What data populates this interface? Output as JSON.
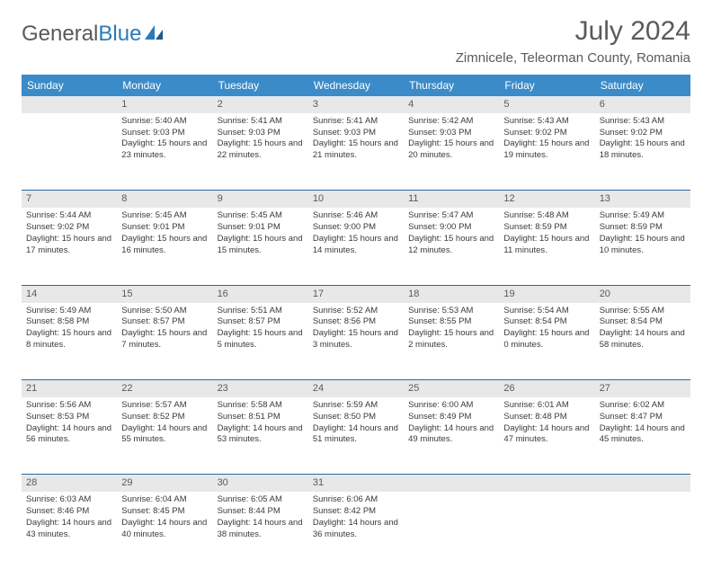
{
  "brand": {
    "part1": "General",
    "part2": "Blue"
  },
  "title": "July 2024",
  "location": "Zimnicele, Teleorman County, Romania",
  "colors": {
    "header_bg": "#3b8bc8",
    "header_text": "#ffffff",
    "daynum_bg": "#e8e8e8",
    "border": "#2a6aa0",
    "text": "#444444",
    "title_text": "#5a5a5a"
  },
  "weekdays": [
    "Sunday",
    "Monday",
    "Tuesday",
    "Wednesday",
    "Thursday",
    "Friday",
    "Saturday"
  ],
  "weeks": [
    {
      "nums": [
        "",
        "1",
        "2",
        "3",
        "4",
        "5",
        "6"
      ],
      "cells": [
        "",
        "Sunrise: 5:40 AM\nSunset: 9:03 PM\nDaylight: 15 hours and 23 minutes.",
        "Sunrise: 5:41 AM\nSunset: 9:03 PM\nDaylight: 15 hours and 22 minutes.",
        "Sunrise: 5:41 AM\nSunset: 9:03 PM\nDaylight: 15 hours and 21 minutes.",
        "Sunrise: 5:42 AM\nSunset: 9:03 PM\nDaylight: 15 hours and 20 minutes.",
        "Sunrise: 5:43 AM\nSunset: 9:02 PM\nDaylight: 15 hours and 19 minutes.",
        "Sunrise: 5:43 AM\nSunset: 9:02 PM\nDaylight: 15 hours and 18 minutes."
      ]
    },
    {
      "nums": [
        "7",
        "8",
        "9",
        "10",
        "11",
        "12",
        "13"
      ],
      "cells": [
        "Sunrise: 5:44 AM\nSunset: 9:02 PM\nDaylight: 15 hours and 17 minutes.",
        "Sunrise: 5:45 AM\nSunset: 9:01 PM\nDaylight: 15 hours and 16 minutes.",
        "Sunrise: 5:45 AM\nSunset: 9:01 PM\nDaylight: 15 hours and 15 minutes.",
        "Sunrise: 5:46 AM\nSunset: 9:00 PM\nDaylight: 15 hours and 14 minutes.",
        "Sunrise: 5:47 AM\nSunset: 9:00 PM\nDaylight: 15 hours and 12 minutes.",
        "Sunrise: 5:48 AM\nSunset: 8:59 PM\nDaylight: 15 hours and 11 minutes.",
        "Sunrise: 5:49 AM\nSunset: 8:59 PM\nDaylight: 15 hours and 10 minutes."
      ]
    },
    {
      "nums": [
        "14",
        "15",
        "16",
        "17",
        "18",
        "19",
        "20"
      ],
      "cells": [
        "Sunrise: 5:49 AM\nSunset: 8:58 PM\nDaylight: 15 hours and 8 minutes.",
        "Sunrise: 5:50 AM\nSunset: 8:57 PM\nDaylight: 15 hours and 7 minutes.",
        "Sunrise: 5:51 AM\nSunset: 8:57 PM\nDaylight: 15 hours and 5 minutes.",
        "Sunrise: 5:52 AM\nSunset: 8:56 PM\nDaylight: 15 hours and 3 minutes.",
        "Sunrise: 5:53 AM\nSunset: 8:55 PM\nDaylight: 15 hours and 2 minutes.",
        "Sunrise: 5:54 AM\nSunset: 8:54 PM\nDaylight: 15 hours and 0 minutes.",
        "Sunrise: 5:55 AM\nSunset: 8:54 PM\nDaylight: 14 hours and 58 minutes."
      ]
    },
    {
      "nums": [
        "21",
        "22",
        "23",
        "24",
        "25",
        "26",
        "27"
      ],
      "cells": [
        "Sunrise: 5:56 AM\nSunset: 8:53 PM\nDaylight: 14 hours and 56 minutes.",
        "Sunrise: 5:57 AM\nSunset: 8:52 PM\nDaylight: 14 hours and 55 minutes.",
        "Sunrise: 5:58 AM\nSunset: 8:51 PM\nDaylight: 14 hours and 53 minutes.",
        "Sunrise: 5:59 AM\nSunset: 8:50 PM\nDaylight: 14 hours and 51 minutes.",
        "Sunrise: 6:00 AM\nSunset: 8:49 PM\nDaylight: 14 hours and 49 minutes.",
        "Sunrise: 6:01 AM\nSunset: 8:48 PM\nDaylight: 14 hours and 47 minutes.",
        "Sunrise: 6:02 AM\nSunset: 8:47 PM\nDaylight: 14 hours and 45 minutes."
      ]
    },
    {
      "nums": [
        "28",
        "29",
        "30",
        "31",
        "",
        "",
        ""
      ],
      "cells": [
        "Sunrise: 6:03 AM\nSunset: 8:46 PM\nDaylight: 14 hours and 43 minutes.",
        "Sunrise: 6:04 AM\nSunset: 8:45 PM\nDaylight: 14 hours and 40 minutes.",
        "Sunrise: 6:05 AM\nSunset: 8:44 PM\nDaylight: 14 hours and 38 minutes.",
        "Sunrise: 6:06 AM\nSunset: 8:42 PM\nDaylight: 14 hours and 36 minutes.",
        "",
        "",
        ""
      ]
    }
  ]
}
